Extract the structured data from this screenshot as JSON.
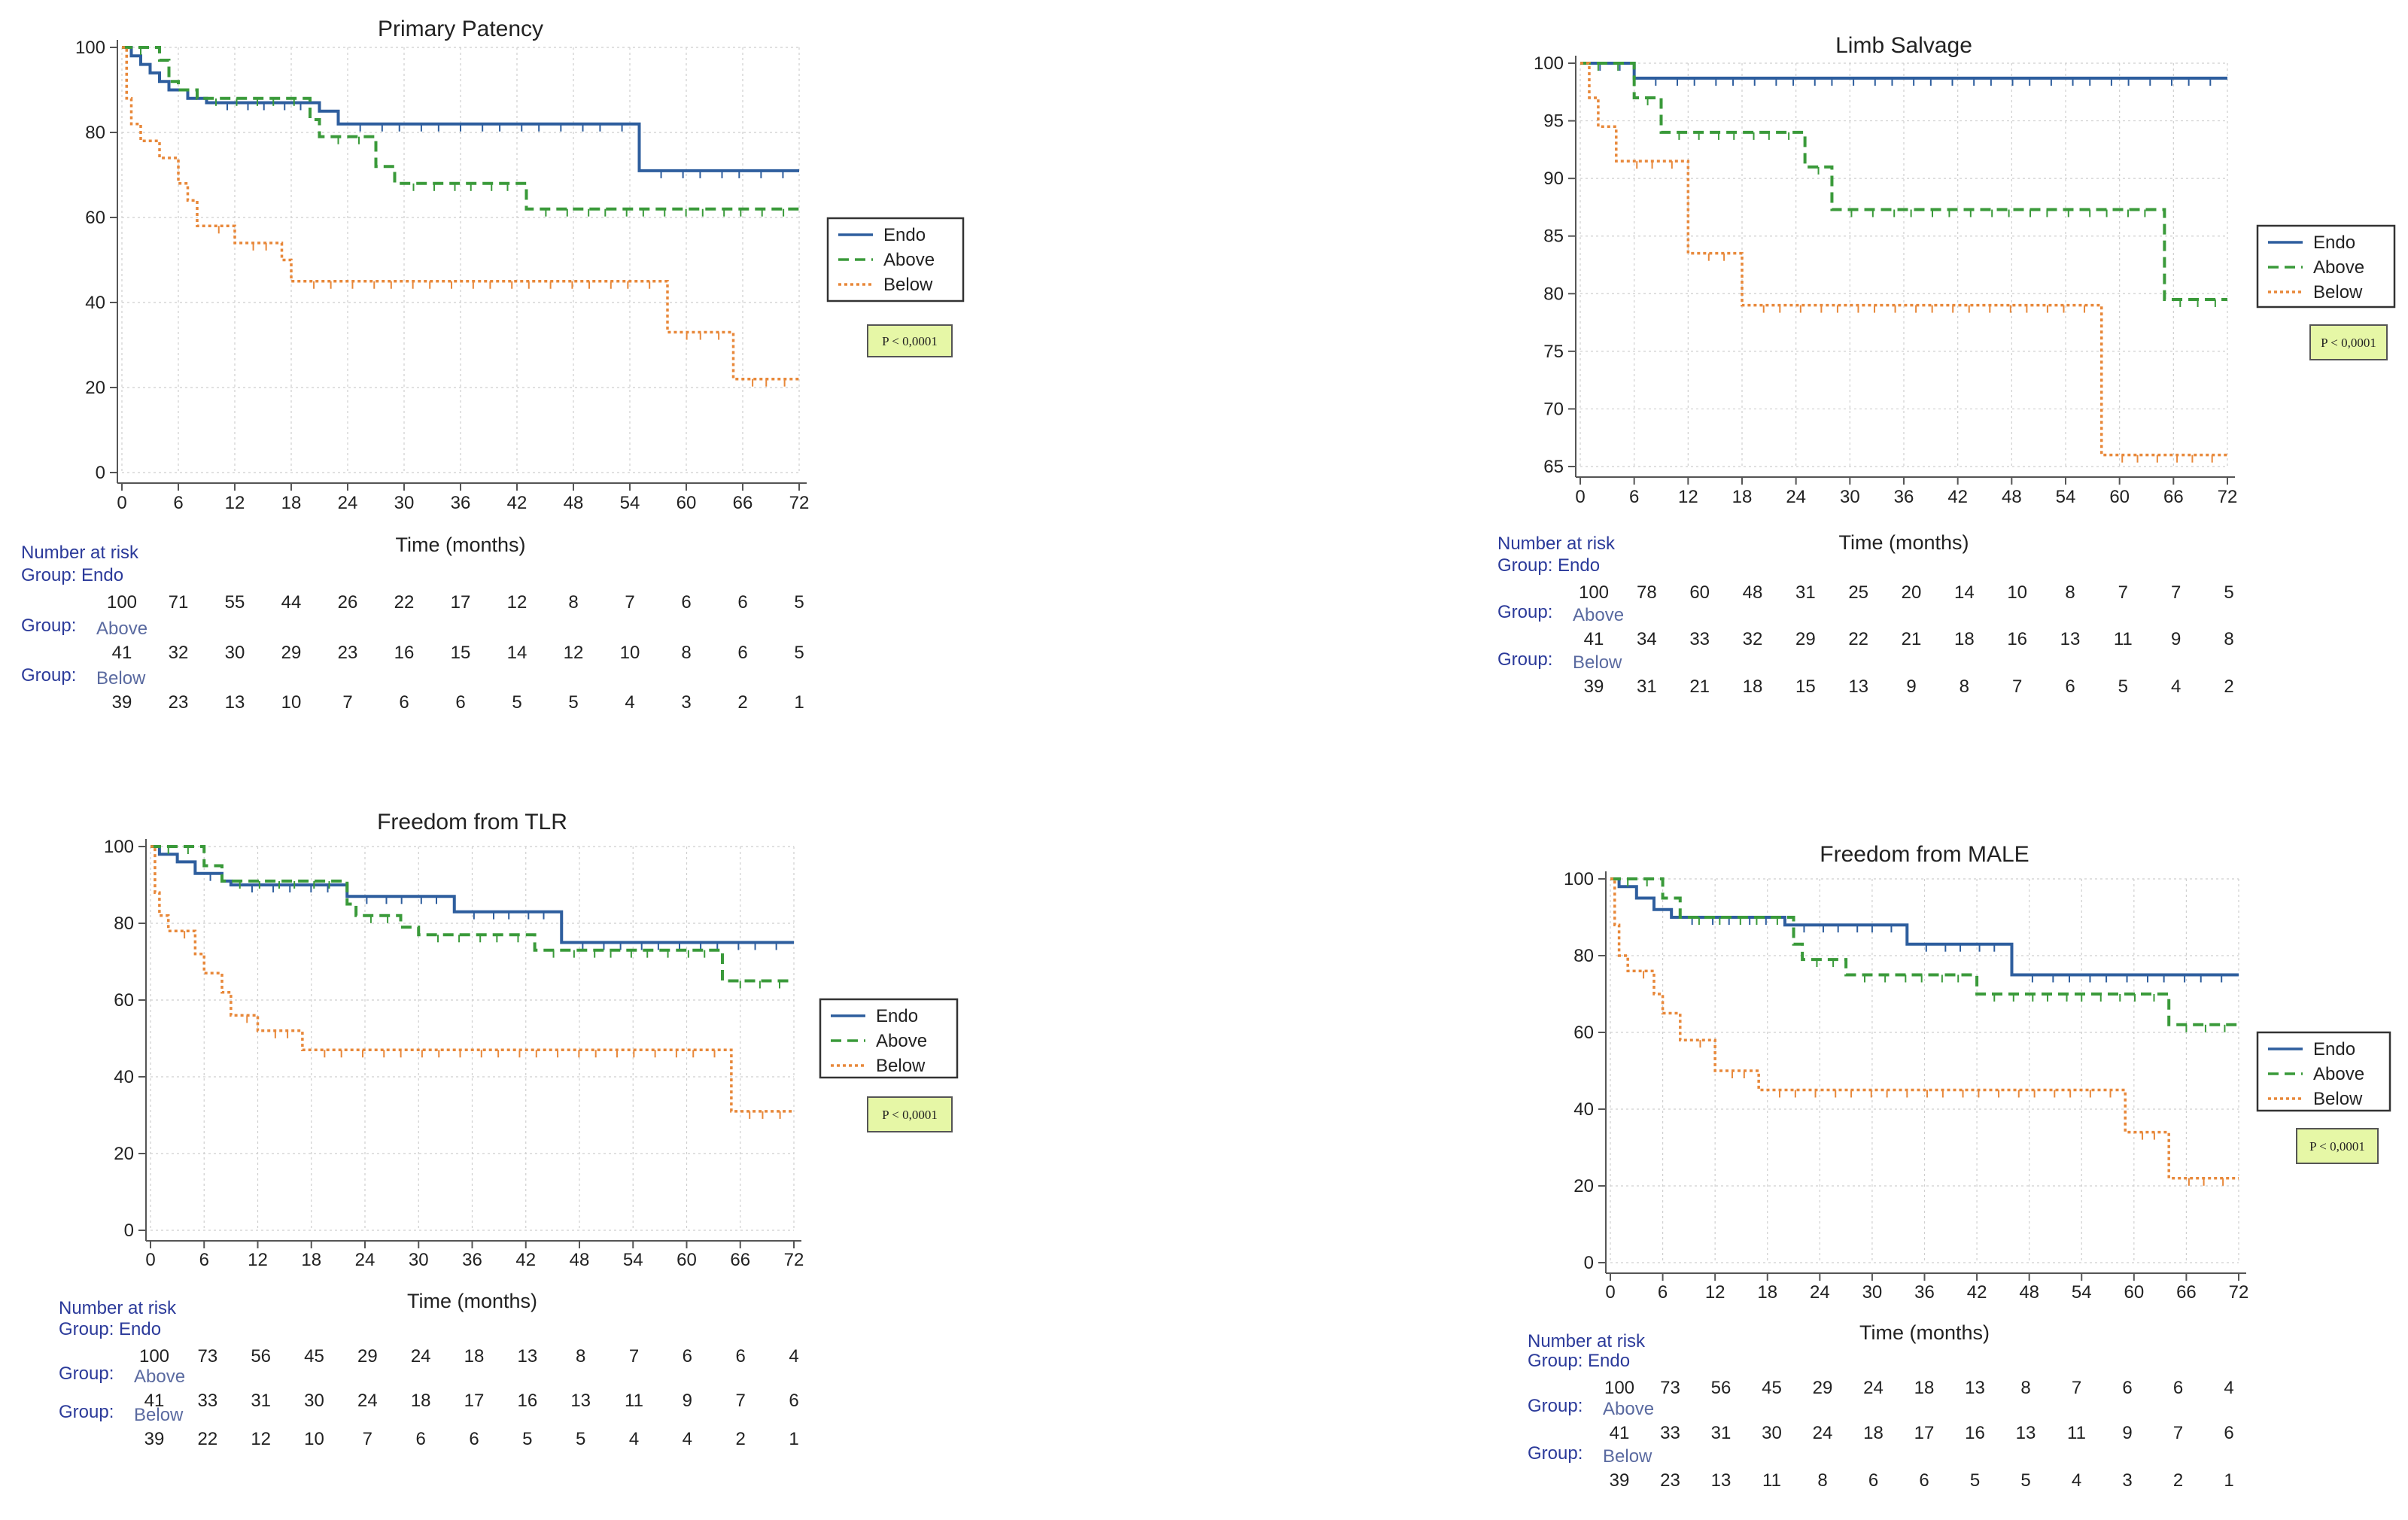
{
  "common": {
    "p_label": "P < 0,0001",
    "number_at_risk_label": "Number at risk",
    "group_prefix": "Group:",
    "colors": {
      "endo": "#2e5e9e",
      "above": "#3a9a3a",
      "below": "#e8883a",
      "p_box_fill": "#e6f7a6"
    }
  },
  "chart_data": [
    {
      "type": "line",
      "title": "Primary Patency",
      "xlabel": "Time (months)",
      "ylabel": "",
      "xlim": [
        0,
        72
      ],
      "ylim": [
        0,
        100
      ],
      "x_ticks": [
        0,
        6,
        12,
        18,
        24,
        30,
        36,
        42,
        48,
        54,
        60,
        66,
        72
      ],
      "y_ticks": [
        0,
        20,
        40,
        60,
        80,
        100
      ],
      "legend": [
        "Endo",
        "Above",
        "Below"
      ],
      "legend_position": "right",
      "series": [
        {
          "name": "Endo",
          "style": "solid",
          "steps": [
            [
              0,
              100
            ],
            [
              1,
              98
            ],
            [
              2,
              96
            ],
            [
              3,
              94
            ],
            [
              4,
              92
            ],
            [
              5,
              90
            ],
            [
              7,
              88
            ],
            [
              9,
              87
            ],
            [
              21,
              85
            ],
            [
              23,
              82
            ],
            [
              55,
              71
            ],
            [
              72,
              71
            ]
          ]
        },
        {
          "name": "Above",
          "style": "dashed",
          "steps": [
            [
              0,
              100
            ],
            [
              4,
              97
            ],
            [
              5,
              92
            ],
            [
              6,
              90
            ],
            [
              8,
              88
            ],
            [
              20,
              83
            ],
            [
              21,
              79
            ],
            [
              27,
              72
            ],
            [
              29,
              68
            ],
            [
              43,
              62
            ],
            [
              72,
              62
            ]
          ]
        },
        {
          "name": "Below",
          "style": "dotted",
          "steps": [
            [
              0,
              100
            ],
            [
              0.5,
              88
            ],
            [
              1,
              82
            ],
            [
              2,
              78
            ],
            [
              4,
              74
            ],
            [
              6,
              68
            ],
            [
              7,
              64
            ],
            [
              8,
              58
            ],
            [
              12,
              54
            ],
            [
              17,
              50
            ],
            [
              18,
              45
            ],
            [
              58,
              33
            ],
            [
              65,
              22
            ],
            [
              72,
              22
            ]
          ]
        }
      ],
      "risk_table": {
        "groups": [
          {
            "name": "Endo",
            "values": [
              100,
              71,
              55,
              44,
              26,
              22,
              17,
              12,
              8,
              7,
              6,
              6,
              5
            ]
          },
          {
            "name": "Above",
            "values": [
              41,
              32,
              30,
              29,
              23,
              16,
              15,
              14,
              12,
              10,
              8,
              6,
              5
            ]
          },
          {
            "name": "Below",
            "values": [
              39,
              23,
              13,
              10,
              7,
              6,
              6,
              5,
              5,
              4,
              3,
              2,
              1
            ]
          }
        ]
      }
    },
    {
      "type": "line",
      "title": "Limb Salvage",
      "xlabel": "Time (months)",
      "ylabel": "",
      "xlim": [
        0,
        72
      ],
      "ylim": [
        65,
        100
      ],
      "x_ticks": [
        0,
        6,
        12,
        18,
        24,
        30,
        36,
        42,
        48,
        54,
        60,
        66,
        72
      ],
      "y_ticks": [
        65,
        70,
        75,
        80,
        85,
        90,
        95,
        100
      ],
      "legend": [
        "Endo",
        "Above",
        "Below"
      ],
      "legend_position": "right",
      "series": [
        {
          "name": "Endo",
          "style": "solid",
          "steps": [
            [
              0,
              100
            ],
            [
              6,
              98.7
            ],
            [
              72,
              98.7
            ]
          ]
        },
        {
          "name": "Above",
          "style": "dashed",
          "steps": [
            [
              0,
              100
            ],
            [
              6,
              97
            ],
            [
              9,
              94
            ],
            [
              25,
              91
            ],
            [
              28,
              87.3
            ],
            [
              65,
              79.5
            ],
            [
              72,
              79.5
            ]
          ]
        },
        {
          "name": "Below",
          "style": "dotted",
          "steps": [
            [
              0,
              100
            ],
            [
              1,
              97
            ],
            [
              2,
              94.5
            ],
            [
              4,
              91.5
            ],
            [
              12,
              83.5
            ],
            [
              18,
              79
            ],
            [
              58,
              66
            ],
            [
              72,
              66
            ]
          ]
        }
      ],
      "risk_table": {
        "groups": [
          {
            "name": "Endo",
            "values": [
              100,
              78,
              60,
              48,
              31,
              25,
              20,
              14,
              10,
              8,
              7,
              7,
              5
            ]
          },
          {
            "name": "Above",
            "values": [
              41,
              34,
              33,
              32,
              29,
              22,
              21,
              18,
              16,
              13,
              11,
              9,
              8
            ]
          },
          {
            "name": "Below",
            "values": [
              39,
              31,
              21,
              18,
              15,
              13,
              9,
              8,
              7,
              6,
              5,
              4,
              2
            ]
          }
        ]
      }
    },
    {
      "type": "line",
      "title": "Freedom from TLR",
      "xlabel": "Time (months)",
      "ylabel": "",
      "xlim": [
        0,
        72
      ],
      "ylim": [
        0,
        100
      ],
      "x_ticks": [
        0,
        6,
        12,
        18,
        24,
        30,
        36,
        42,
        48,
        54,
        60,
        66,
        72
      ],
      "y_ticks": [
        0,
        20,
        40,
        60,
        80,
        100
      ],
      "legend": [
        "Endo",
        "Above",
        "Below"
      ],
      "legend_position": "right",
      "series": [
        {
          "name": "Endo",
          "style": "solid",
          "steps": [
            [
              0,
              100
            ],
            [
              1,
              98
            ],
            [
              3,
              96
            ],
            [
              5,
              93
            ],
            [
              8,
              91
            ],
            [
              9,
              90
            ],
            [
              22,
              87
            ],
            [
              34,
              83
            ],
            [
              46,
              75
            ],
            [
              72,
              75
            ]
          ]
        },
        {
          "name": "Above",
          "style": "dashed",
          "steps": [
            [
              0,
              100
            ],
            [
              6,
              95
            ],
            [
              8,
              91
            ],
            [
              22,
              85
            ],
            [
              23,
              82
            ],
            [
              28,
              79
            ],
            [
              30,
              77
            ],
            [
              43,
              73
            ],
            [
              64,
              65
            ],
            [
              72,
              65
            ]
          ]
        },
        {
          "name": "Below",
          "style": "dotted",
          "steps": [
            [
              0,
              100
            ],
            [
              0.5,
              88
            ],
            [
              1,
              82
            ],
            [
              2,
              78
            ],
            [
              5,
              72
            ],
            [
              6,
              67
            ],
            [
              8,
              62
            ],
            [
              9,
              56
            ],
            [
              12,
              52
            ],
            [
              17,
              47
            ],
            [
              65,
              31
            ],
            [
              72,
              31
            ]
          ]
        }
      ],
      "risk_table": {
        "groups": [
          {
            "name": "Endo",
            "values": [
              100,
              73,
              56,
              45,
              29,
              24,
              18,
              13,
              8,
              7,
              6,
              6,
              4
            ]
          },
          {
            "name": "Above",
            "values": [
              41,
              33,
              31,
              30,
              24,
              18,
              17,
              16,
              13,
              11,
              9,
              7,
              6
            ]
          },
          {
            "name": "Below",
            "values": [
              39,
              22,
              12,
              10,
              7,
              6,
              6,
              5,
              5,
              4,
              4,
              2,
              1
            ]
          }
        ]
      }
    },
    {
      "type": "line",
      "title": "Freedom from MALE",
      "xlabel": "Time (months)",
      "ylabel": "",
      "xlim": [
        0,
        72
      ],
      "ylim": [
        0,
        100
      ],
      "x_ticks": [
        0,
        6,
        12,
        18,
        24,
        30,
        36,
        42,
        48,
        54,
        60,
        66,
        72
      ],
      "y_ticks": [
        0,
        20,
        40,
        60,
        80,
        100
      ],
      "legend": [
        "Endo",
        "Above",
        "Below"
      ],
      "legend_position": "right",
      "series": [
        {
          "name": "Endo",
          "style": "solid",
          "steps": [
            [
              0,
              100
            ],
            [
              1,
              98
            ],
            [
              3,
              95
            ],
            [
              5,
              92
            ],
            [
              7,
              90
            ],
            [
              20,
              88
            ],
            [
              34,
              83
            ],
            [
              46,
              75
            ],
            [
              72,
              75
            ]
          ]
        },
        {
          "name": "Above",
          "style": "dashed",
          "steps": [
            [
              0,
              100
            ],
            [
              6,
              95
            ],
            [
              8,
              90
            ],
            [
              21,
              83
            ],
            [
              22,
              79
            ],
            [
              27,
              75
            ],
            [
              42,
              70
            ],
            [
              64,
              62
            ],
            [
              72,
              62
            ]
          ]
        },
        {
          "name": "Below",
          "style": "dotted",
          "steps": [
            [
              0,
              100
            ],
            [
              0.5,
              88
            ],
            [
              1,
              80
            ],
            [
              2,
              76
            ],
            [
              5,
              70
            ],
            [
              6,
              65
            ],
            [
              8,
              58
            ],
            [
              12,
              50
            ],
            [
              17,
              45
            ],
            [
              59,
              34
            ],
            [
              64,
              22
            ],
            [
              72,
              22
            ]
          ]
        }
      ],
      "risk_table": {
        "groups": [
          {
            "name": "Endo",
            "values": [
              100,
              73,
              56,
              45,
              29,
              24,
              18,
              13,
              8,
              7,
              6,
              6,
              4
            ]
          },
          {
            "name": "Above",
            "values": [
              41,
              33,
              31,
              30,
              24,
              18,
              17,
              16,
              13,
              11,
              9,
              7,
              6
            ]
          },
          {
            "name": "Below",
            "values": [
              39,
              23,
              13,
              11,
              8,
              6,
              6,
              5,
              5,
              4,
              3,
              2,
              1
            ]
          }
        ]
      }
    }
  ]
}
